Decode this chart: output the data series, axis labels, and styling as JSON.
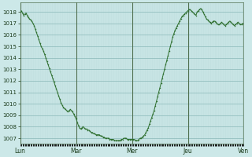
{
  "background_color": "#cce8e8",
  "plot_bg_color": "#cce8e8",
  "line_color": "#2d6e2d",
  "marker_color": "#2d6e2d",
  "grid_color": "#b8d8d8",
  "grid_color_major": "#8ab8b8",
  "tick_label_color": "#1a3a1a",
  "ylim": [
    1006.5,
    1018.8
  ],
  "yticks": [
    1007,
    1008,
    1009,
    1010,
    1011,
    1012,
    1013,
    1014,
    1015,
    1016,
    1017,
    1018
  ],
  "xtick_labels": [
    "Lun",
    "Mar",
    "Mer",
    "Jeu",
    "Ven"
  ],
  "num_points": 192,
  "data_y": [
    1018.0,
    1018.1,
    1017.9,
    1017.7,
    1017.8,
    1017.9,
    1017.7,
    1017.5,
    1017.4,
    1017.3,
    1017.2,
    1017.0,
    1016.8,
    1016.5,
    1016.2,
    1015.9,
    1015.6,
    1015.3,
    1015.0,
    1014.8,
    1014.6,
    1014.3,
    1014.0,
    1013.7,
    1013.4,
    1013.1,
    1012.8,
    1012.5,
    1012.2,
    1011.9,
    1011.6,
    1011.3,
    1011.0,
    1010.7,
    1010.4,
    1010.1,
    1009.9,
    1009.7,
    1009.6,
    1009.5,
    1009.4,
    1009.3,
    1009.4,
    1009.5,
    1009.4,
    1009.3,
    1009.1,
    1008.9,
    1008.7,
    1008.4,
    1008.1,
    1007.9,
    1007.8,
    1007.9,
    1008.0,
    1007.9,
    1007.8,
    1007.8,
    1007.7,
    1007.7,
    1007.6,
    1007.5,
    1007.5,
    1007.4,
    1007.4,
    1007.3,
    1007.3,
    1007.3,
    1007.3,
    1007.2,
    1007.2,
    1007.1,
    1007.1,
    1007.0,
    1007.0,
    1007.0,
    1007.0,
    1006.9,
    1006.9,
    1006.9,
    1006.9,
    1006.8,
    1006.8,
    1006.8,
    1006.8,
    1006.8,
    1006.8,
    1006.9,
    1006.9,
    1007.0,
    1007.0,
    1007.0,
    1006.9,
    1006.9,
    1006.9,
    1006.9,
    1006.9,
    1006.9,
    1006.9,
    1006.8,
    1006.8,
    1006.8,
    1006.9,
    1007.0,
    1007.0,
    1007.1,
    1007.2,
    1007.3,
    1007.5,
    1007.7,
    1007.9,
    1008.2,
    1008.5,
    1008.8,
    1009.1,
    1009.4,
    1009.8,
    1010.2,
    1010.6,
    1011.0,
    1011.4,
    1011.8,
    1012.2,
    1012.6,
    1013.0,
    1013.4,
    1013.8,
    1014.2,
    1014.6,
    1015.0,
    1015.4,
    1015.8,
    1016.1,
    1016.4,
    1016.6,
    1016.8,
    1017.0,
    1017.2,
    1017.4,
    1017.6,
    1017.7,
    1017.8,
    1017.9,
    1018.0,
    1018.1,
    1018.2,
    1018.2,
    1018.1,
    1018.0,
    1017.9,
    1017.8,
    1017.7,
    1018.0,
    1018.1,
    1018.2,
    1018.3,
    1018.2,
    1018.0,
    1017.8,
    1017.6,
    1017.4,
    1017.3,
    1017.2,
    1017.1,
    1017.0,
    1017.1,
    1017.2,
    1017.2,
    1017.1,
    1017.0,
    1016.9,
    1016.9,
    1017.0,
    1017.1,
    1017.0,
    1016.9,
    1016.8,
    1016.9,
    1017.0,
    1017.1,
    1017.2,
    1017.1,
    1017.0,
    1016.9,
    1016.8,
    1016.9,
    1017.0,
    1017.1,
    1017.0,
    1016.9,
    1016.9,
    1017.0
  ]
}
